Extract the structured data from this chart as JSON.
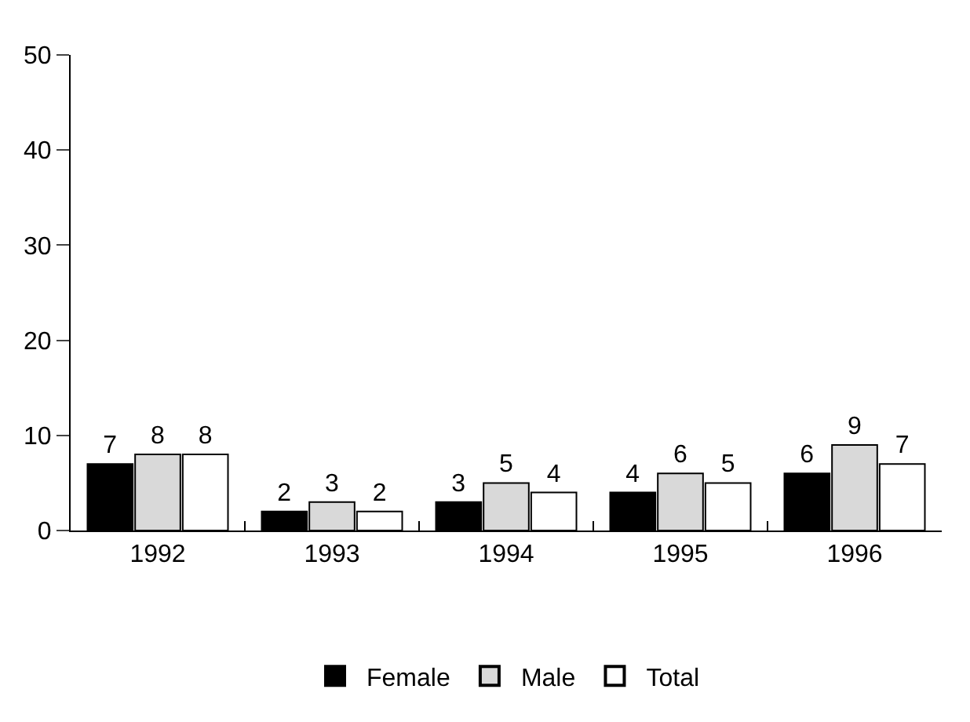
{
  "chart_data": {
    "type": "bar",
    "categories": [
      "1992",
      "1993",
      "1994",
      "1995",
      "1996"
    ],
    "series": [
      {
        "name": "Female",
        "color": "#000000",
        "values": [
          7,
          2,
          3,
          4,
          6
        ]
      },
      {
        "name": "Male",
        "color": "#d9d9d9",
        "values": [
          8,
          3,
          5,
          6,
          9
        ]
      },
      {
        "name": "Total",
        "color": "#ffffff",
        "values": [
          8,
          2,
          4,
          5,
          7
        ]
      }
    ],
    "ylim": [
      0,
      50
    ],
    "yticks": [
      0,
      10,
      20,
      30,
      40,
      50
    ],
    "legend": "bottom",
    "data_labels": true
  }
}
